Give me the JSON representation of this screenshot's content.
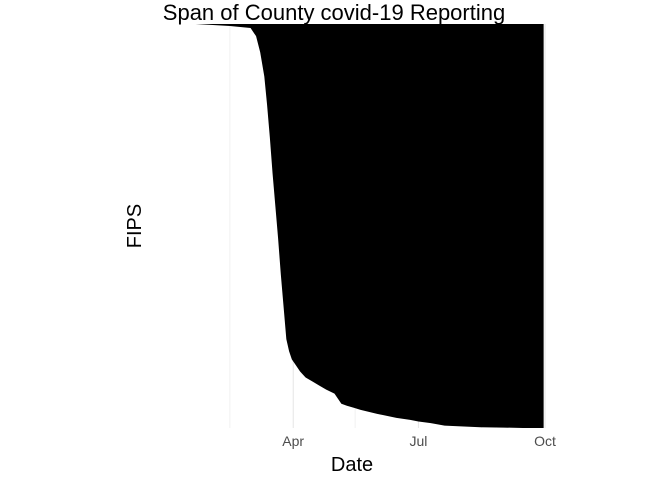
{
  "chart_data": {
    "type": "area",
    "title": "Span of County covid-19 Reporting",
    "xlabel": "Date",
    "ylabel": "FIPS",
    "x_ticks": [
      "Apr",
      "Jul",
      "Oct"
    ],
    "x_tick_dates": [
      "2020-04-01",
      "2020-07-01",
      "2020-10-01"
    ],
    "xlim": [
      "2020-01-01",
      "2020-10-01"
    ],
    "ylim": [
      0,
      1
    ],
    "y_ticks_shown": false,
    "grid": "vertical",
    "fill_color": "#000000",
    "series": [
      {
        "values_description_x": "first reporting date per county (sorted)",
        "x": [
          "2020-01-21",
          "2020-02-15",
          "2020-03-01",
          "2020-03-05",
          "2020-03-08",
          "2020-03-11",
          "2020-03-13",
          "2020-03-15",
          "2020-03-17",
          "2020-03-19",
          "2020-03-21",
          "2020-03-23",
          "2020-03-25",
          "2020-03-27",
          "2020-03-29",
          "2020-03-31",
          "2020-04-03",
          "2020-04-06",
          "2020-04-10",
          "2020-04-15",
          "2020-04-20",
          "2020-04-25",
          "2020-05-01",
          "2020-05-06",
          "2020-05-10",
          "2020-05-15",
          "2020-05-20",
          "2020-06-01",
          "2020-06-15",
          "2020-06-25",
          "2020-07-01",
          "2020-07-10",
          "2020-07-20",
          "2020-08-01",
          "2020-08-15",
          "2020-09-01",
          "2020-09-15",
          "2020-09-30"
        ],
        "y": [
          1.0,
          0.995,
          0.99,
          0.97,
          0.93,
          0.87,
          0.8,
          0.72,
          0.63,
          0.55,
          0.47,
          0.38,
          0.3,
          0.22,
          0.19,
          0.17,
          0.155,
          0.14,
          0.125,
          0.115,
          0.105,
          0.095,
          0.085,
          0.06,
          0.055,
          0.05,
          0.045,
          0.035,
          0.025,
          0.02,
          0.016,
          0.012,
          0.006,
          0.004,
          0.002,
          0.001,
          0.0,
          0.0
        ]
      }
    ],
    "x_end": "2020-09-30"
  }
}
